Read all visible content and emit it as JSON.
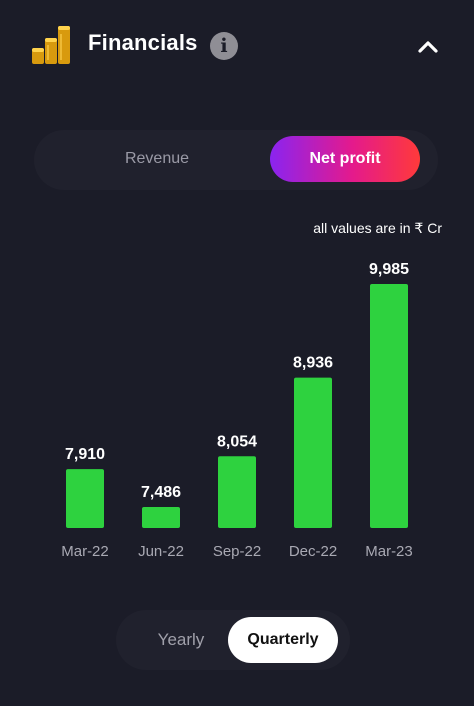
{
  "header": {
    "title": "Financials",
    "info_glyph": "i",
    "icons": [
      "coins-icon",
      "info-icon",
      "chevron-up-icon"
    ]
  },
  "metric_toggle": {
    "options": [
      "Revenue",
      "Net profit"
    ],
    "selected": "Net profit"
  },
  "units_note": "all values are in ₹ Cr",
  "period_toggle": {
    "options": [
      "Yearly",
      "Quarterly"
    ],
    "selected": "Quarterly"
  },
  "colors": {
    "background": "#1b1c28",
    "bar": "#2ed23f",
    "accent_gradient": [
      "#8a24f0",
      "#e41a8c",
      "#ff3a3a"
    ],
    "muted_text": "#9a9aa6"
  },
  "chart_data": {
    "type": "bar",
    "categories": [
      "Mar-22",
      "Jun-22",
      "Sep-22",
      "Dec-22",
      "Mar-23"
    ],
    "values": [
      7910,
      7486,
      8054,
      8936,
      9985
    ],
    "value_labels": [
      "7,910",
      "7,486",
      "8,054",
      "8,936",
      "9,985"
    ],
    "title": "",
    "xlabel": "",
    "ylabel": "",
    "grid": false,
    "legend": "none"
  }
}
